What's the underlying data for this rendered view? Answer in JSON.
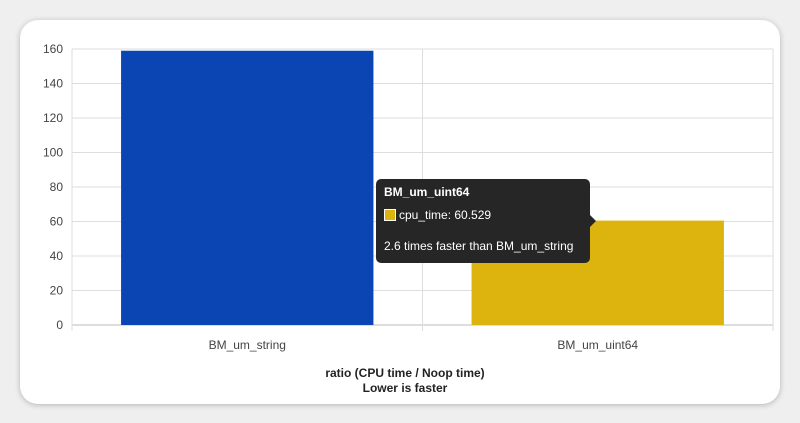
{
  "chart_data": {
    "type": "bar",
    "categories": [
      "BM_um_string",
      "BM_um_uint64"
    ],
    "series": [
      {
        "values": [
          159.0,
          60.529
        ]
      }
    ],
    "bar_colors": [
      "#0b45b3",
      "#ddb30e"
    ],
    "xlabel": "ratio (CPU time / Noop time)",
    "xlabel_sub": "Lower is faster",
    "ylim": [
      0,
      160
    ],
    "yticks": [
      "0",
      "20",
      "40",
      "60",
      "80",
      "100",
      "120",
      "140",
      "160"
    ],
    "grid": true
  },
  "tooltip": {
    "title": "BM_um_uint64",
    "value_text": "cpu_time: 60.529",
    "note": "2.6 times faster than BM_um_string",
    "swatch_color": "#ddb30e"
  },
  "colors": {
    "grid": "#dddddd",
    "axis": "#bbbbbb",
    "tooltip_bg": "#262626"
  }
}
